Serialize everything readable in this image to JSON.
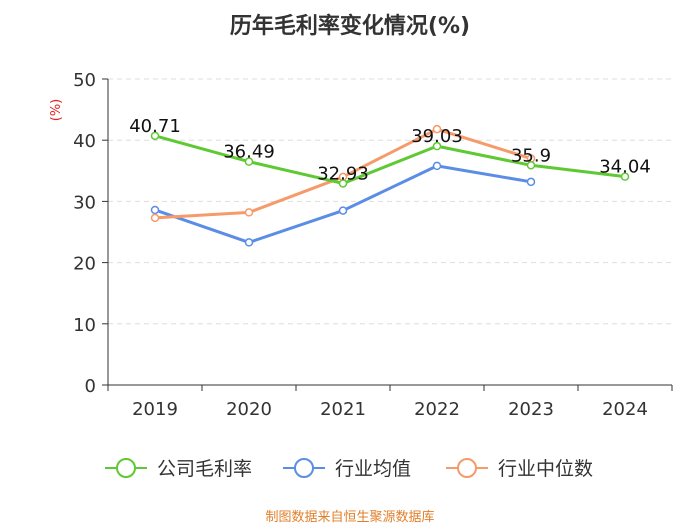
{
  "chart_data": {
    "type": "line",
    "title": "历年毛利率变化情况(%)",
    "ylabel": "(%)",
    "xlabel": "",
    "ylim": [
      0,
      50
    ],
    "yticks": [
      0,
      10,
      20,
      30,
      40,
      50
    ],
    "categories": [
      "2019",
      "2020",
      "2021",
      "2022",
      "2023",
      "2024"
    ],
    "grid": "horizontal dashed",
    "legend_position": "bottom",
    "series": [
      {
        "name": "公司毛利率",
        "color": "#5ec932",
        "values": [
          40.71,
          36.49,
          32.93,
          39.03,
          35.9,
          34.04
        ],
        "labels": [
          "40.71",
          "36.49",
          "32.93",
          "39.03",
          "35.9",
          "34.04"
        ]
      },
      {
        "name": "行业均值",
        "color": "#5b8de6",
        "values": [
          28.6,
          23.3,
          28.5,
          35.8,
          33.2,
          null
        ]
      },
      {
        "name": "行业中位数",
        "color": "#f79a6a",
        "values": [
          27.3,
          28.2,
          34.0,
          41.8,
          37.0,
          null
        ]
      }
    ]
  },
  "footer": {
    "source": "制图数据来自恒生聚源数据库"
  }
}
